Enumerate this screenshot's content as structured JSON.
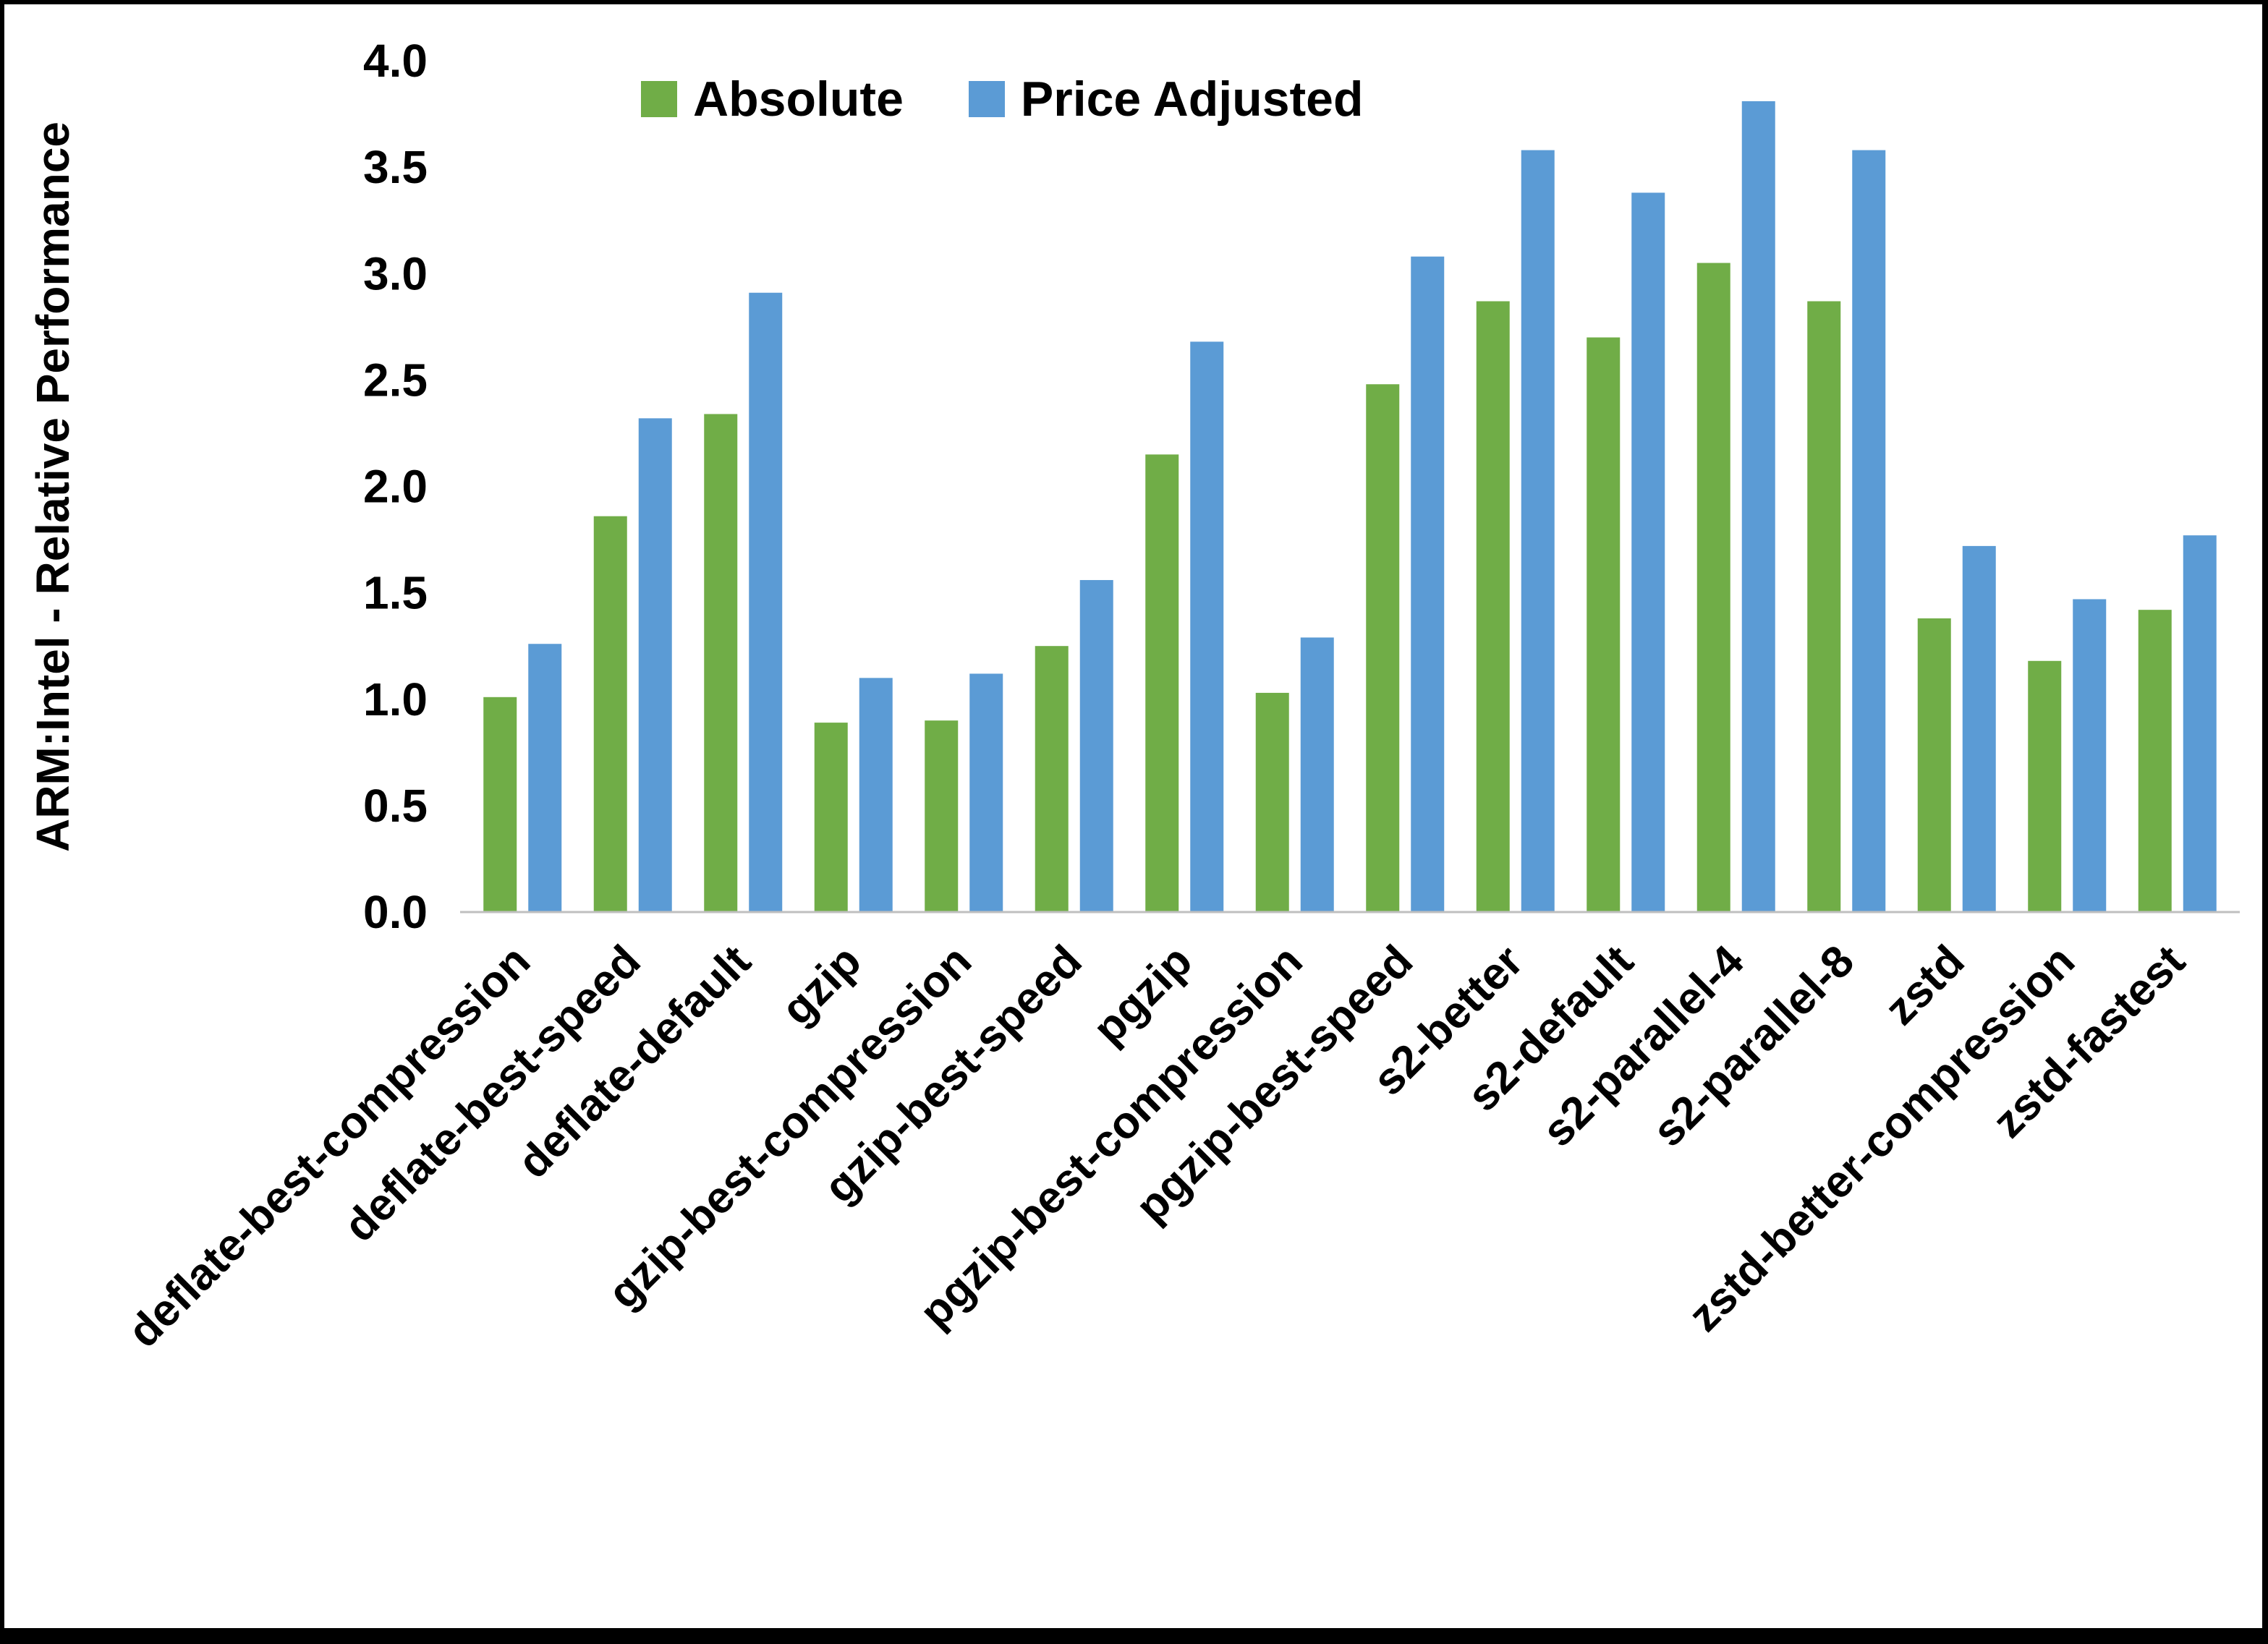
{
  "chart_data": {
    "type": "bar",
    "title": "",
    "ylabel": "ARM:Intel - Relative Performance",
    "xlabel": "",
    "ylim": [
      0.0,
      4.0
    ],
    "ytick_step": 0.5,
    "grid": false,
    "legend_position": "top",
    "background_color": "#ffffff",
    "axis_line_color": "#bfbfbf",
    "categories": [
      "deflate-best-compression",
      "deflate-best-speed",
      "deflate-default",
      "gzip",
      "gzip-best-compression",
      "gzip-best-speed",
      "pgzip",
      "pgzip-best-compression",
      "pgzip-best-speed",
      "s2-better",
      "s2-default",
      "s2-parallel-4",
      "s2-parallel-8",
      "zstd",
      "zstd-better-compression",
      "zstd-fastest"
    ],
    "series": [
      {
        "name": "Absolute",
        "color": "#70AD47",
        "values": [
          1.01,
          1.86,
          2.34,
          0.89,
          0.9,
          1.25,
          2.15,
          1.03,
          2.48,
          2.87,
          2.7,
          3.05,
          2.87,
          1.38,
          1.18,
          1.42
        ]
      },
      {
        "name": "Price Adjusted",
        "color": "#5B9BD5",
        "values": [
          1.26,
          2.32,
          2.91,
          1.1,
          1.12,
          1.56,
          2.68,
          1.29,
          3.08,
          3.58,
          3.38,
          3.81,
          3.58,
          1.72,
          1.47,
          1.77
        ]
      }
    ]
  }
}
